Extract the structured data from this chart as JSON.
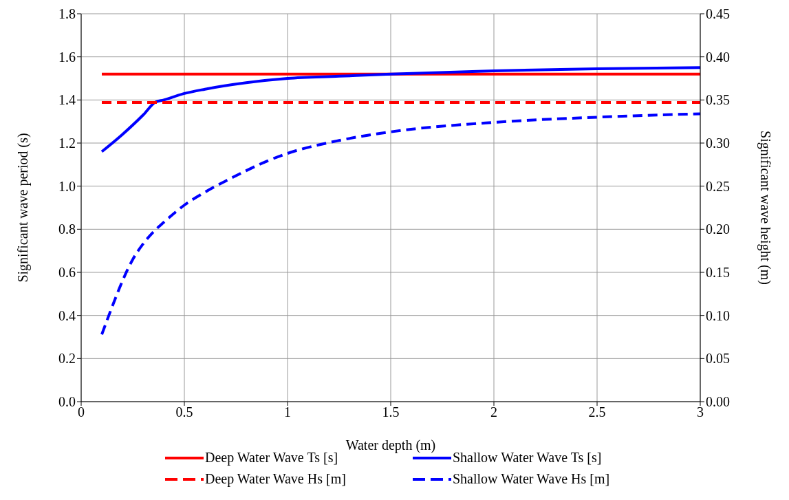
{
  "chart_data": {
    "type": "line",
    "xlabel": "Water depth (m)",
    "ylabel": "Significant wave period (s)",
    "y2label": "Significant wave height (m)",
    "xlim": [
      0,
      3
    ],
    "xticks": [
      0,
      0.5,
      1,
      1.5,
      2,
      2.5,
      3
    ],
    "ylim": [
      0,
      1.8
    ],
    "yticks": [
      {
        "value": 0,
        "label": "0.0"
      },
      0.2,
      0.4,
      0.6,
      0.8,
      {
        "value": 1,
        "label": "1.0"
      },
      1.2,
      1.4,
      1.6,
      1.8
    ],
    "y2lim": [
      0,
      0.45
    ],
    "y2ticks": [
      {
        "value": 0,
        "label": "0.00"
      },
      0.05,
      {
        "value": 0.1,
        "label": "0.10"
      },
      0.15,
      {
        "value": 0.2,
        "label": "0.20"
      },
      0.25,
      {
        "value": 0.3,
        "label": "0.30"
      },
      0.35,
      {
        "value": 0.4,
        "label": "0.40"
      },
      0.45
    ],
    "grid": true,
    "legend": "bottom",
    "marker": "none",
    "series": [
      {
        "name": "Deep Water Wave Ts [s]",
        "color": "#ff0000",
        "line_style": "solid",
        "x": [
          0.1,
          3
        ],
        "values": [
          1.52,
          1.52
        ]
      },
      {
        "name": "Shallow Water Wave Ts [s]",
        "color": "#0000ff",
        "line_style": "solid",
        "x": [
          0.1,
          0.2,
          0.3,
          0.36,
          0.4,
          0.5,
          0.6,
          0.8,
          1,
          1.25,
          1.5,
          2,
          2.5,
          3
        ],
        "values": [
          1.16,
          1.24,
          1.33,
          1.39,
          1.4,
          1.43,
          1.45,
          1.48,
          1.5,
          1.51,
          1.52,
          1.535,
          1.545,
          1.55
        ]
      },
      {
        "name": "Deep Water Wave Hs [m]",
        "color": "#ff0000",
        "line_style": "dashed",
        "axis": "y2",
        "x": [
          0.1,
          3
        ],
        "values": [
          0.347,
          0.347
        ]
      },
      {
        "name": "Shallow Water Wave Hs [m]",
        "color": "#0000ff",
        "line_style": "dashed",
        "axis": "y2",
        "x": [
          0.1,
          0.15,
          0.2,
          0.25,
          0.3,
          0.35,
          0.4,
          0.5,
          0.6,
          0.7,
          0.8,
          0.9,
          1,
          1.25,
          1.5,
          2,
          2.5,
          3
        ],
        "values": [
          0.078,
          0.11,
          0.14,
          0.165,
          0.183,
          0.197,
          0.208,
          0.228,
          0.243,
          0.256,
          0.268,
          0.279,
          0.288,
          0.303,
          0.313,
          0.324,
          0.33,
          0.334
        ]
      }
    ]
  }
}
